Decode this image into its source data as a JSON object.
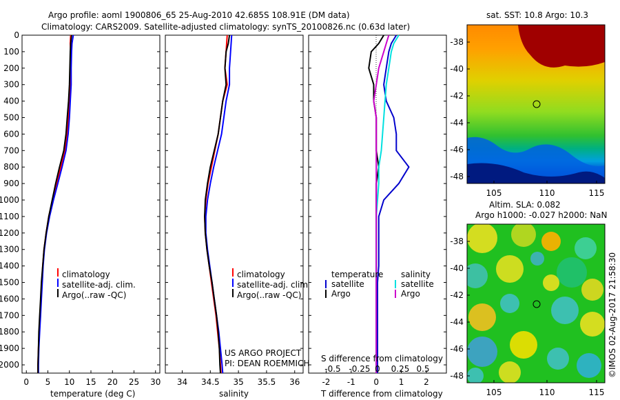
{
  "header": {
    "line1": "Argo profile: aoml 1900806_65 25-Aug-2010 42.685S 108.91E (DM data)",
    "line2": "Climatology: CARS2009. Satellite-adjusted climatology: synTS_20100826.nc (0.63d later)"
  },
  "depth_ticks": [
    0,
    100,
    200,
    300,
    400,
    500,
    600,
    700,
    800,
    900,
    1000,
    1100,
    1200,
    1300,
    1400,
    1500,
    1600,
    1700,
    1800,
    1900,
    2000
  ],
  "chart_data": [
    {
      "type": "line",
      "id": "temperature",
      "xlabel": "temperature (deg C)",
      "xlim": [
        -1,
        31
      ],
      "xticks": [
        0,
        5,
        10,
        15,
        20,
        25,
        30
      ],
      "ylim": [
        0,
        2050
      ],
      "y_reversed": true,
      "legend": [
        "climatology",
        "satellite-adj. clim.",
        "Argo(..raw -QC)"
      ],
      "series": [
        {
          "name": "climatology",
          "color": "#ff0000",
          "points": [
            [
              10.3,
              0
            ],
            [
              10.2,
              50
            ],
            [
              10.3,
              100
            ],
            [
              10.2,
              200
            ],
            [
              10.3,
              300
            ],
            [
              10.0,
              400
            ],
            [
              9.8,
              500
            ],
            [
              9.5,
              600
            ],
            [
              9.0,
              700
            ],
            [
              8.0,
              800
            ],
            [
              7.0,
              900
            ],
            [
              6.1,
              1000
            ],
            [
              5.2,
              1100
            ],
            [
              4.6,
              1200
            ],
            [
              4.1,
              1300
            ],
            [
              3.8,
              1400
            ],
            [
              3.6,
              1500
            ],
            [
              3.4,
              1600
            ],
            [
              3.2,
              1700
            ],
            [
              3.0,
              1800
            ],
            [
              2.8,
              1900
            ],
            [
              2.7,
              2000
            ],
            [
              2.7,
              2050
            ]
          ]
        },
        {
          "name": "satellite-adj. clim.",
          "color": "#0000ff",
          "points": [
            [
              10.9,
              0
            ],
            [
              10.6,
              50
            ],
            [
              10.5,
              100
            ],
            [
              10.4,
              200
            ],
            [
              10.4,
              300
            ],
            [
              10.2,
              400
            ],
            [
              10.0,
              500
            ],
            [
              9.7,
              600
            ],
            [
              9.2,
              700
            ],
            [
              8.3,
              800
            ],
            [
              7.3,
              900
            ],
            [
              6.3,
              1000
            ],
            [
              5.4,
              1100
            ],
            [
              4.7,
              1200
            ],
            [
              4.2,
              1300
            ],
            [
              3.9,
              1400
            ],
            [
              3.7,
              1500
            ],
            [
              3.5,
              1600
            ],
            [
              3.3,
              1700
            ],
            [
              3.1,
              1800
            ],
            [
              2.9,
              1900
            ],
            [
              2.8,
              2000
            ],
            [
              2.8,
              2050
            ]
          ]
        },
        {
          "name": "Argo(..raw -QC)",
          "color": "#000000",
          "points": [
            [
              10.5,
              0
            ],
            [
              10.3,
              50
            ],
            [
              10.2,
              100
            ],
            [
              10.1,
              200
            ],
            [
              10.0,
              300
            ],
            [
              9.8,
              400
            ],
            [
              9.5,
              500
            ],
            [
              9.2,
              600
            ],
            [
              8.7,
              700
            ],
            [
              7.7,
              800
            ],
            [
              6.8,
              900
            ],
            [
              6.0,
              1000
            ],
            [
              5.2,
              1100
            ],
            [
              4.6,
              1200
            ],
            [
              4.1,
              1300
            ],
            [
              3.8,
              1400
            ],
            [
              3.5,
              1500
            ],
            [
              3.3,
              1600
            ],
            [
              3.1,
              1700
            ],
            [
              2.9,
              1800
            ],
            [
              2.8,
              1900
            ],
            [
              2.7,
              2000
            ],
            [
              2.7,
              2050
            ]
          ]
        }
      ]
    },
    {
      "type": "line",
      "id": "salinity",
      "xlabel": "salinity",
      "xlim": [
        33.7,
        36.15
      ],
      "xticks": [
        34,
        34.5,
        35,
        35.5,
        36
      ],
      "ylim": [
        0,
        2050
      ],
      "y_reversed": true,
      "legend": [
        "climatology",
        "satellite-adj. clim.",
        "Argo(..raw -QC)"
      ],
      "series": [
        {
          "name": "climatology",
          "color": "#ff0000",
          "points": [
            [
              34.8,
              0
            ],
            [
              34.78,
              100
            ],
            [
              34.76,
              200
            ],
            [
              34.8,
              300
            ],
            [
              34.72,
              400
            ],
            [
              34.68,
              500
            ],
            [
              34.64,
              600
            ],
            [
              34.58,
              700
            ],
            [
              34.52,
              800
            ],
            [
              34.46,
              900
            ],
            [
              34.42,
              1000
            ],
            [
              34.4,
              1100
            ],
            [
              34.41,
              1200
            ],
            [
              34.44,
              1300
            ],
            [
              34.48,
              1400
            ],
            [
              34.52,
              1500
            ],
            [
              34.56,
              1600
            ],
            [
              34.6,
              1700
            ],
            [
              34.63,
              1800
            ],
            [
              34.66,
              1900
            ],
            [
              34.68,
              2000
            ],
            [
              34.69,
              2050
            ]
          ]
        },
        {
          "name": "satellite-adj. clim.",
          "color": "#0000ff",
          "points": [
            [
              34.88,
              0
            ],
            [
              34.86,
              100
            ],
            [
              34.84,
              200
            ],
            [
              34.84,
              300
            ],
            [
              34.78,
              400
            ],
            [
              34.74,
              500
            ],
            [
              34.7,
              600
            ],
            [
              34.63,
              700
            ],
            [
              34.56,
              800
            ],
            [
              34.5,
              900
            ],
            [
              34.45,
              1000
            ],
            [
              34.42,
              1100
            ],
            [
              34.42,
              1200
            ],
            [
              34.45,
              1300
            ],
            [
              34.49,
              1400
            ],
            [
              34.53,
              1500
            ],
            [
              34.57,
              1600
            ],
            [
              34.61,
              1700
            ],
            [
              34.65,
              1800
            ],
            [
              34.68,
              1900
            ],
            [
              34.71,
              2000
            ],
            [
              34.72,
              2050
            ]
          ]
        },
        {
          "name": "Argo(..raw -QC)",
          "color": "#000000",
          "points": [
            [
              34.84,
              0
            ],
            [
              34.82,
              50
            ],
            [
              34.78,
              100
            ],
            [
              34.76,
              200
            ],
            [
              34.78,
              300
            ],
            [
              34.72,
              400
            ],
            [
              34.68,
              500
            ],
            [
              34.64,
              600
            ],
            [
              34.57,
              700
            ],
            [
              34.5,
              800
            ],
            [
              34.45,
              900
            ],
            [
              34.41,
              1000
            ],
            [
              34.4,
              1100
            ],
            [
              34.41,
              1200
            ],
            [
              34.44,
              1300
            ],
            [
              34.48,
              1400
            ],
            [
              34.53,
              1500
            ],
            [
              34.57,
              1600
            ],
            [
              34.61,
              1700
            ],
            [
              34.64,
              1800
            ],
            [
              34.66,
              1900
            ],
            [
              34.67,
              2000
            ],
            [
              34.68,
              2050
            ]
          ]
        }
      ]
    },
    {
      "type": "line",
      "id": "difference",
      "xlabel": "T difference from climatology",
      "xlabel2": "S difference from climatology",
      "xlim": [
        -2.7,
        2.8
      ],
      "xticks": [
        -2,
        -1,
        0,
        1,
        2
      ],
      "top_ticks": [
        "-0.5",
        "-0.25",
        "0",
        "0.25",
        "0.5"
      ],
      "ylim": [
        0,
        2050
      ],
      "y_reversed": true,
      "legend_t_title": "temperature",
      "legend_s_title": "salinity",
      "legend_t": [
        "satellite",
        "Argo"
      ],
      "legend_s": [
        "satellite",
        "Argo"
      ],
      "series": [
        {
          "name": "T satellite",
          "color": "#0000cc",
          "points": [
            [
              0.8,
              0
            ],
            [
              0.6,
              50
            ],
            [
              0.5,
              100
            ],
            [
              0.4,
              200
            ],
            [
              0.3,
              300
            ],
            [
              0.4,
              400
            ],
            [
              0.7,
              500
            ],
            [
              0.8,
              600
            ],
            [
              0.8,
              700
            ],
            [
              1.3,
              800
            ],
            [
              0.9,
              900
            ],
            [
              0.3,
              1000
            ],
            [
              0.1,
              1100
            ],
            [
              0.1,
              1200
            ],
            [
              0.1,
              1300
            ],
            [
              0.1,
              1400
            ],
            [
              0.05,
              1500
            ],
            [
              0.05,
              1600
            ],
            [
              0.05,
              1700
            ],
            [
              0.05,
              1800
            ],
            [
              0.05,
              1900
            ],
            [
              0.05,
              2000
            ],
            [
              0.05,
              2050
            ]
          ]
        },
        {
          "name": "T Argo",
          "color": "#000000",
          "points": [
            [
              0.3,
              0
            ],
            [
              0.1,
              50
            ],
            [
              -0.2,
              100
            ],
            [
              -0.3,
              200
            ],
            [
              -0.1,
              300
            ],
            [
              -0.1,
              400
            ],
            [
              0.0,
              500
            ],
            [
              0.0,
              600
            ],
            [
              0.0,
              700
            ],
            [
              0.1,
              800
            ],
            [
              0.0,
              900
            ],
            [
              0.0,
              1000
            ],
            [
              0.0,
              1100
            ],
            [
              0.0,
              1200
            ],
            [
              0.0,
              1300
            ],
            [
              0.0,
              1400
            ],
            [
              0.0,
              1500
            ],
            [
              0.0,
              1600
            ],
            [
              0.0,
              1700
            ],
            [
              0.0,
              1800
            ],
            [
              0.0,
              1900
            ],
            [
              0.0,
              2000
            ],
            [
              0.0,
              2050
            ]
          ]
        },
        {
          "name": "S satellite",
          "color": "#00e0e0",
          "points": [
            [
              0.9,
              0
            ],
            [
              0.7,
              50
            ],
            [
              0.6,
              100
            ],
            [
              0.5,
              200
            ],
            [
              0.4,
              300
            ],
            [
              0.35,
              400
            ],
            [
              0.3,
              500
            ],
            [
              0.25,
              600
            ],
            [
              0.2,
              700
            ],
            [
              0.1,
              800
            ],
            [
              0.1,
              900
            ],
            [
              0.05,
              1000
            ],
            [
              0.0,
              1100
            ],
            [
              0.0,
              1200
            ],
            [
              0.0,
              1300
            ],
            [
              0.0,
              1400
            ],
            [
              0.0,
              1500
            ],
            [
              0.0,
              1600
            ],
            [
              0.0,
              1700
            ],
            [
              0.0,
              1800
            ],
            [
              0.0,
              1900
            ],
            [
              0.0,
              2000
            ],
            [
              0.0,
              2050
            ]
          ]
        },
        {
          "name": "S Argo",
          "color": "#cc00cc",
          "points": [
            [
              0.5,
              0
            ],
            [
              0.4,
              50
            ],
            [
              0.3,
              100
            ],
            [
              0.1,
              200
            ],
            [
              0.0,
              300
            ],
            [
              -0.1,
              400
            ],
            [
              0.0,
              500
            ],
            [
              0.0,
              600
            ],
            [
              0.0,
              700
            ],
            [
              0.0,
              800
            ],
            [
              0.0,
              900
            ],
            [
              0.0,
              1000
            ],
            [
              0.0,
              1100
            ],
            [
              0.0,
              1200
            ],
            [
              0.0,
              1300
            ],
            [
              0.0,
              1400
            ],
            [
              0.0,
              1500
            ],
            [
              0.0,
              1600
            ],
            [
              0.0,
              1700
            ],
            [
              0.0,
              1800
            ],
            [
              0.0,
              1900
            ],
            [
              0.0,
              2000
            ],
            [
              0.0,
              2050
            ]
          ]
        }
      ]
    }
  ],
  "footer_text": {
    "line1": "US ARGO PROJECT",
    "line2": "PI: DEAN ROEMMICH"
  },
  "maps": {
    "sst": {
      "title": "sat. SST: 10.8 Argo: 10.3",
      "yticks": [
        "-38",
        "-40",
        "-42",
        "-44",
        "-46",
        "-48"
      ],
      "xticks": [
        "105",
        "110",
        "115"
      ]
    },
    "sla": {
      "title1": "Altim. SLA: 0.082",
      "title2": "Argo h1000: -0.027 h2000: NaN",
      "yticks": [
        "-38",
        "-40",
        "-42",
        "-44",
        "-46",
        "-48"
      ],
      "xticks": [
        "105",
        "110",
        "115"
      ]
    }
  },
  "credit": "©IMOS 02-Aug-2017 21:58:30"
}
